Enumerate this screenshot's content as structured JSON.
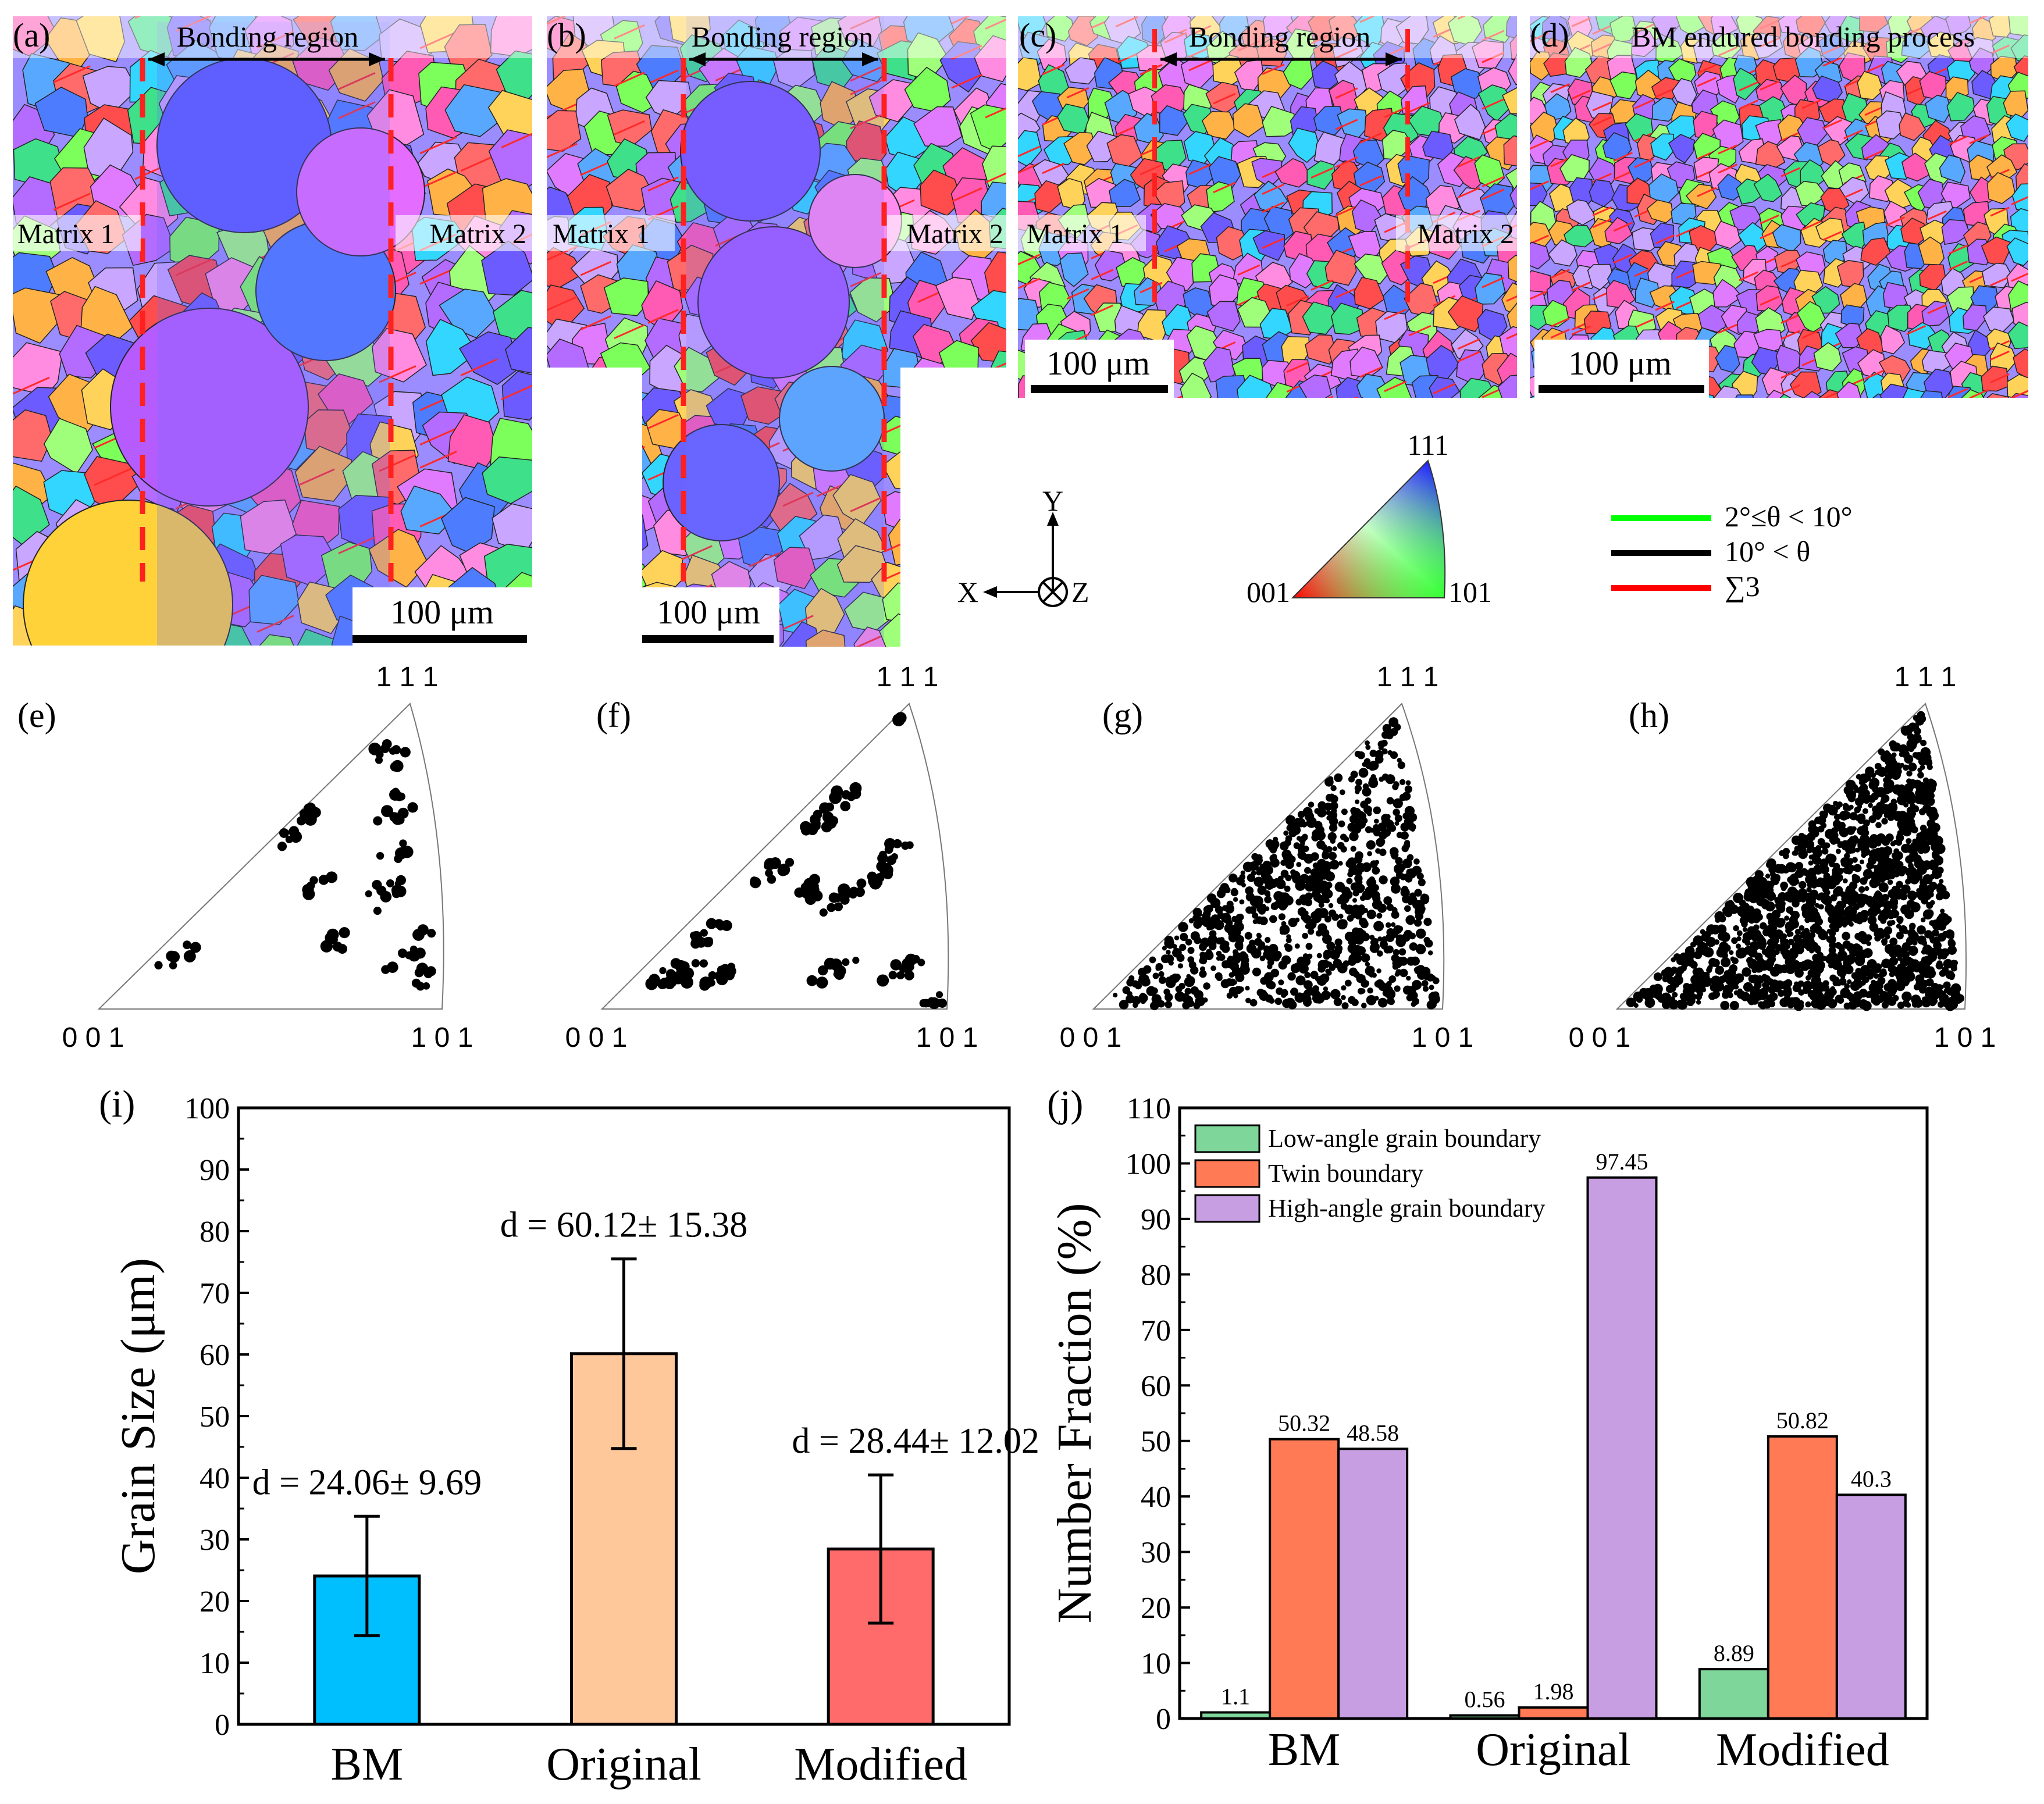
{
  "ebsd": {
    "panels": [
      {
        "id": "a",
        "label": "(a)",
        "title": "Bonding region",
        "left": "Matrix 1",
        "right": "Matrix 2",
        "scale": "100 μm"
      },
      {
        "id": "b",
        "label": "(b)",
        "title": "Bonding region",
        "left": "Matrix 1",
        "right": "Matrix 2",
        "scale": "100 μm"
      },
      {
        "id": "c",
        "label": "(c)",
        "title": "Bonding region",
        "left": "Matrix 1",
        "right": "Matrix 2",
        "scale": "100 μm"
      },
      {
        "id": "d",
        "label": "(d)",
        "title": "BM endured bonding process",
        "scale": "100 μm"
      }
    ],
    "axes": {
      "y": "Y",
      "x": "X",
      "z": "Z"
    },
    "ipf_key": {
      "top": "111",
      "left": "001",
      "right": "101"
    },
    "boundary_legend": [
      {
        "label": "2°≤θ < 10°",
        "color": "#00ff00"
      },
      {
        "label": "10° < θ",
        "color": "#000000"
      },
      {
        "label": "∑3",
        "color": "#ff0000"
      }
    ],
    "grain_colors": [
      "#ff6b6b",
      "#4d7cff",
      "#b46bff",
      "#ff5ab4",
      "#33d6ff",
      "#7cff5a",
      "#ffb347",
      "#ff8ce0",
      "#6c5cff",
      "#3ee08a",
      "#c9a6ff",
      "#ff4d4d",
      "#59a8ff",
      "#a0ff7a",
      "#e07bff",
      "#ffd35a"
    ]
  },
  "ipf": {
    "panels": [
      {
        "label": "(e)",
        "density": 90,
        "cluster": true
      },
      {
        "label": "(f)",
        "density": 170,
        "cluster": true
      },
      {
        "label": "(g)",
        "density": 900,
        "cluster": false
      },
      {
        "label": "(h)",
        "density": 1500,
        "cluster": false
      }
    ],
    "corner_top": "1 1 1",
    "corner_left": "0 0 1",
    "corner_right": "1 0 1"
  },
  "chart_data": [
    {
      "type": "bar",
      "panel": "(i)",
      "categories": [
        "BM",
        "Original",
        "Modified"
      ],
      "values": [
        24.06,
        60.12,
        28.44
      ],
      "errors": [
        9.69,
        15.38,
        12.02
      ],
      "annotations": [
        "d = 24.06± 9.69",
        "d = 60.12± 15.38",
        "d = 28.44± 12.02"
      ],
      "colors": [
        "#00bfff",
        "#ffc89a",
        "#ff6a6a"
      ],
      "ylabel": "Grain Size (μm)",
      "ylim": [
        0,
        100
      ],
      "yticks": [
        0,
        10,
        20,
        30,
        40,
        50,
        60,
        70,
        80,
        90,
        100
      ]
    },
    {
      "type": "bar",
      "panel": "(j)",
      "categories": [
        "BM",
        "Original",
        "Modified"
      ],
      "series": [
        {
          "name": "Low-angle grain boundary",
          "color": "#7fd69a",
          "values": [
            1.1,
            0.56,
            8.89
          ]
        },
        {
          "name": "Twin boundary",
          "color": "#ff7a55",
          "values": [
            50.32,
            1.98,
            50.82
          ]
        },
        {
          "name": "High-angle grain boundary",
          "color": "#c89ee2",
          "values": [
            48.58,
            97.45,
            40.3
          ]
        }
      ],
      "ylabel": "Number Fraction (%)",
      "ylim": [
        0,
        110
      ],
      "yticks": [
        0,
        10,
        20,
        30,
        40,
        50,
        60,
        70,
        80,
        90,
        100,
        110
      ],
      "legend": "top-left"
    }
  ]
}
